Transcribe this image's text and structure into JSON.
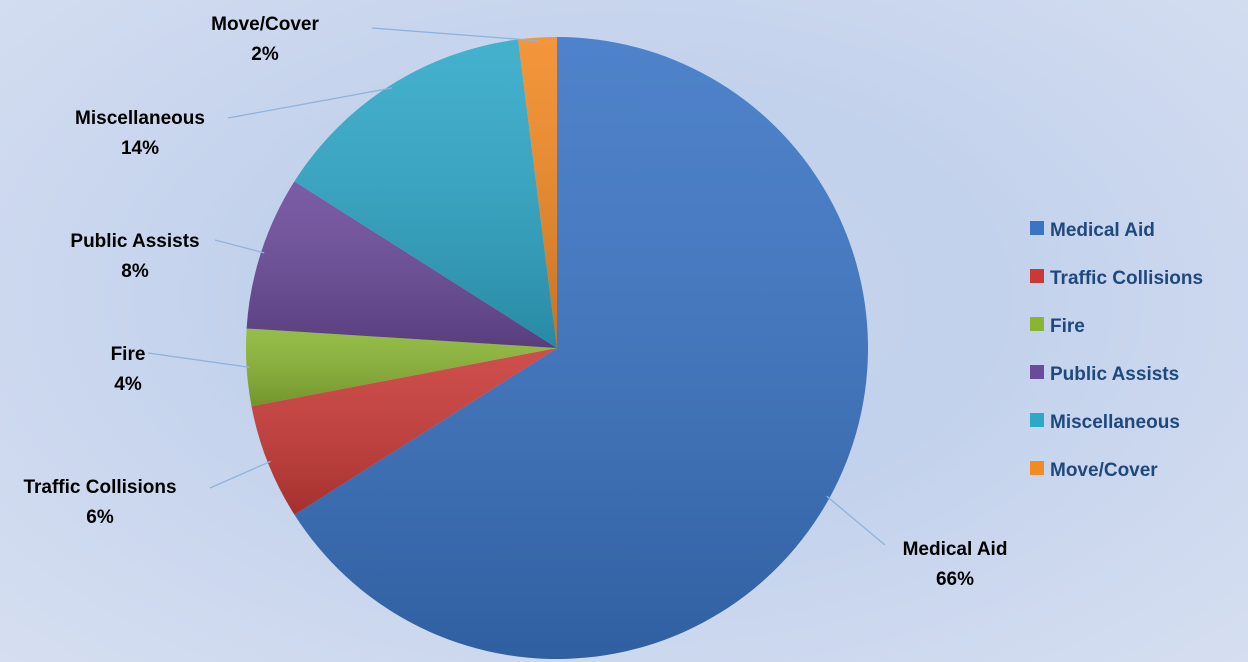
{
  "chart_data": {
    "type": "pie",
    "title": "",
    "slices": [
      {
        "label": "Medical Aid",
        "value": 66,
        "value_label": "66%",
        "color": "#3a74c4"
      },
      {
        "label": "Traffic Collisions",
        "value": 6,
        "value_label": "6%",
        "color": "#c93a37"
      },
      {
        "label": "Fire",
        "value": 4,
        "value_label": "4%",
        "color": "#8ab534"
      },
      {
        "label": "Public Assists",
        "value": 8,
        "value_label": "8%",
        "color": "#6b4a9a"
      },
      {
        "label": "Miscellaneous",
        "value": 14,
        "value_label": "14%",
        "color": "#2fa8c8"
      },
      {
        "label": "Move/Cover",
        "value": 2,
        "value_label": "2%",
        "color": "#f28a25"
      }
    ],
    "legend_position": "right",
    "leader_line_color": "#8fb3dc"
  }
}
